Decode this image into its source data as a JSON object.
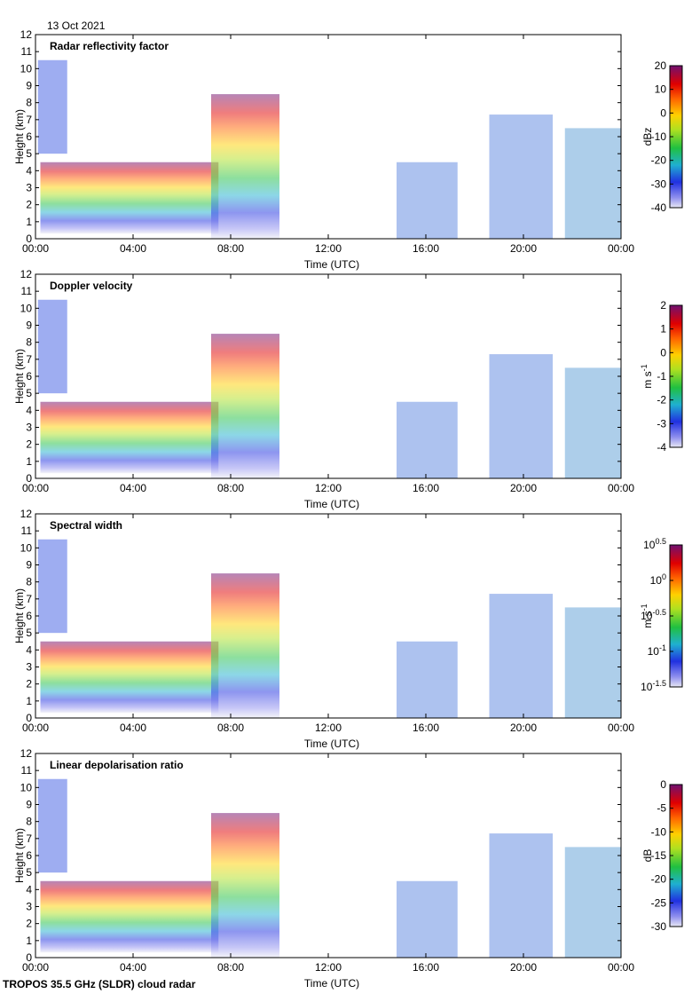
{
  "date_label": "13 Oct 2021",
  "footer": "TROPOS 35.5 GHz (SLDR) cloud radar",
  "chart_data": [
    {
      "type": "heatmap",
      "title": "Radar reflectivity factor",
      "xlabel": "Time (UTC)",
      "ylabel": "Height (km)",
      "xticks": [
        "00:00",
        "04:00",
        "08:00",
        "12:00",
        "16:00",
        "20:00",
        "00:00"
      ],
      "xlim_hours": [
        0,
        24
      ],
      "ylim": [
        0,
        12
      ],
      "yticks": [
        0,
        1,
        2,
        3,
        4,
        5,
        6,
        7,
        8,
        9,
        10,
        11,
        12
      ],
      "colorbar": {
        "label": "dBz",
        "range": [
          -40,
          20
        ],
        "ticks": [
          "20",
          "10",
          "0",
          "-10",
          "-20",
          "-30",
          "-40"
        ],
        "ticks_sup": [
          "",
          "",
          "",
          "",
          "",
          "",
          ""
        ],
        "label_sup": ""
      }
    },
    {
      "type": "heatmap",
      "title": "Doppler velocity",
      "xlabel": "Time (UTC)",
      "ylabel": "Height (km)",
      "xticks": [
        "00:00",
        "04:00",
        "08:00",
        "12:00",
        "16:00",
        "20:00",
        "00:00"
      ],
      "xlim_hours": [
        0,
        24
      ],
      "ylim": [
        0,
        12
      ],
      "yticks": [
        0,
        1,
        2,
        3,
        4,
        5,
        6,
        7,
        8,
        9,
        10,
        11,
        12
      ],
      "colorbar": {
        "label": "m s",
        "label_sup": "-1",
        "range": [
          -4,
          2
        ],
        "ticks": [
          "2",
          "1",
          "0",
          "-1",
          "-2",
          "-3",
          "-4"
        ],
        "ticks_sup": [
          "",
          "",
          "",
          "",
          "",
          "",
          ""
        ]
      }
    },
    {
      "type": "heatmap",
      "title": "Spectral width",
      "xlabel": "Time (UTC)",
      "ylabel": "Height (km)",
      "xticks": [
        "00:00",
        "04:00",
        "08:00",
        "12:00",
        "16:00",
        "20:00",
        "00:00"
      ],
      "xlim_hours": [
        0,
        24
      ],
      "ylim": [
        0,
        12
      ],
      "yticks": [
        0,
        1,
        2,
        3,
        4,
        5,
        6,
        7,
        8,
        9,
        10,
        11,
        12
      ],
      "colorbar": {
        "label": "m s",
        "label_sup": "-1",
        "scale": "log10",
        "range": [
          -1.5,
          0.5
        ],
        "ticks": [
          "10",
          "10",
          "10",
          "10",
          "10"
        ],
        "ticks_sup": [
          "0.5",
          "0",
          "-0.5",
          "-1",
          "-1.5"
        ]
      }
    },
    {
      "type": "heatmap",
      "title": "Linear depolarisation ratio",
      "xlabel": "Time (UTC)",
      "ylabel": "Height (km)",
      "xticks": [
        "00:00",
        "04:00",
        "08:00",
        "12:00",
        "16:00",
        "20:00",
        "00:00"
      ],
      "xlim_hours": [
        0,
        24
      ],
      "ylim": [
        0,
        12
      ],
      "yticks": [
        0,
        1,
        2,
        3,
        4,
        5,
        6,
        7,
        8,
        9,
        10,
        11,
        12
      ],
      "colorbar": {
        "label": "dB",
        "range": [
          -30,
          0
        ],
        "ticks": [
          "0",
          "-5",
          "-10",
          "-15",
          "-20",
          "-25",
          "-30"
        ],
        "ticks_sup": [
          "",
          "",
          "",
          "",
          "",
          "",
          ""
        ],
        "label_sup": ""
      }
    }
  ]
}
